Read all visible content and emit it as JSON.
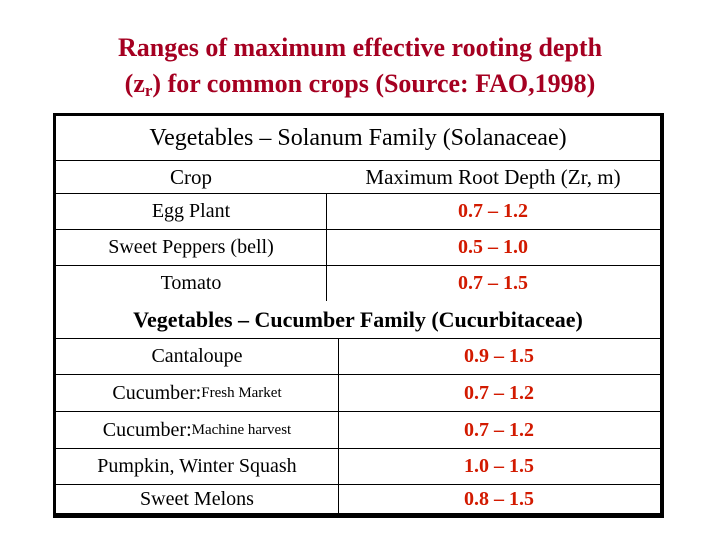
{
  "title": {
    "line1": "Ranges of maximum effective rooting depth",
    "line2_pre": "(z",
    "line2_sub": "r",
    "line2_post": ") for common crops (Source: FAO,1998)"
  },
  "section1": {
    "heading": "Vegetables – Solanum Family (Solanaceae)",
    "col_crop": "Crop",
    "col_depth": "Maximum Root Depth (Zr, m)",
    "rows": [
      {
        "crop": "Egg Plant",
        "depth": "0.7 – 1.2"
      },
      {
        "crop": "Sweet Peppers (bell)",
        "depth": "0.5 – 1.0"
      },
      {
        "crop": "Tomato",
        "depth": "0.7 – 1.5"
      }
    ]
  },
  "section2": {
    "heading": "Vegetables – Cucumber Family (Cucurbitaceae)",
    "rows": [
      {
        "crop": "Cantaloupe",
        "crop_note": "",
        "depth": "0.9 – 1.5"
      },
      {
        "crop": "Cucumber:",
        "crop_note": "Fresh Market",
        "depth": "0.7 – 1.2"
      },
      {
        "crop": "Cucumber:",
        "crop_note": "Machine harvest",
        "depth": "0.7 – 1.2"
      },
      {
        "crop": "Pumpkin, Winter Squash",
        "crop_note": "",
        "depth": "1.0 – 1.5"
      },
      {
        "crop": "Sweet Melons",
        "crop_note": "",
        "depth": "0.8 – 1.5"
      }
    ]
  }
}
